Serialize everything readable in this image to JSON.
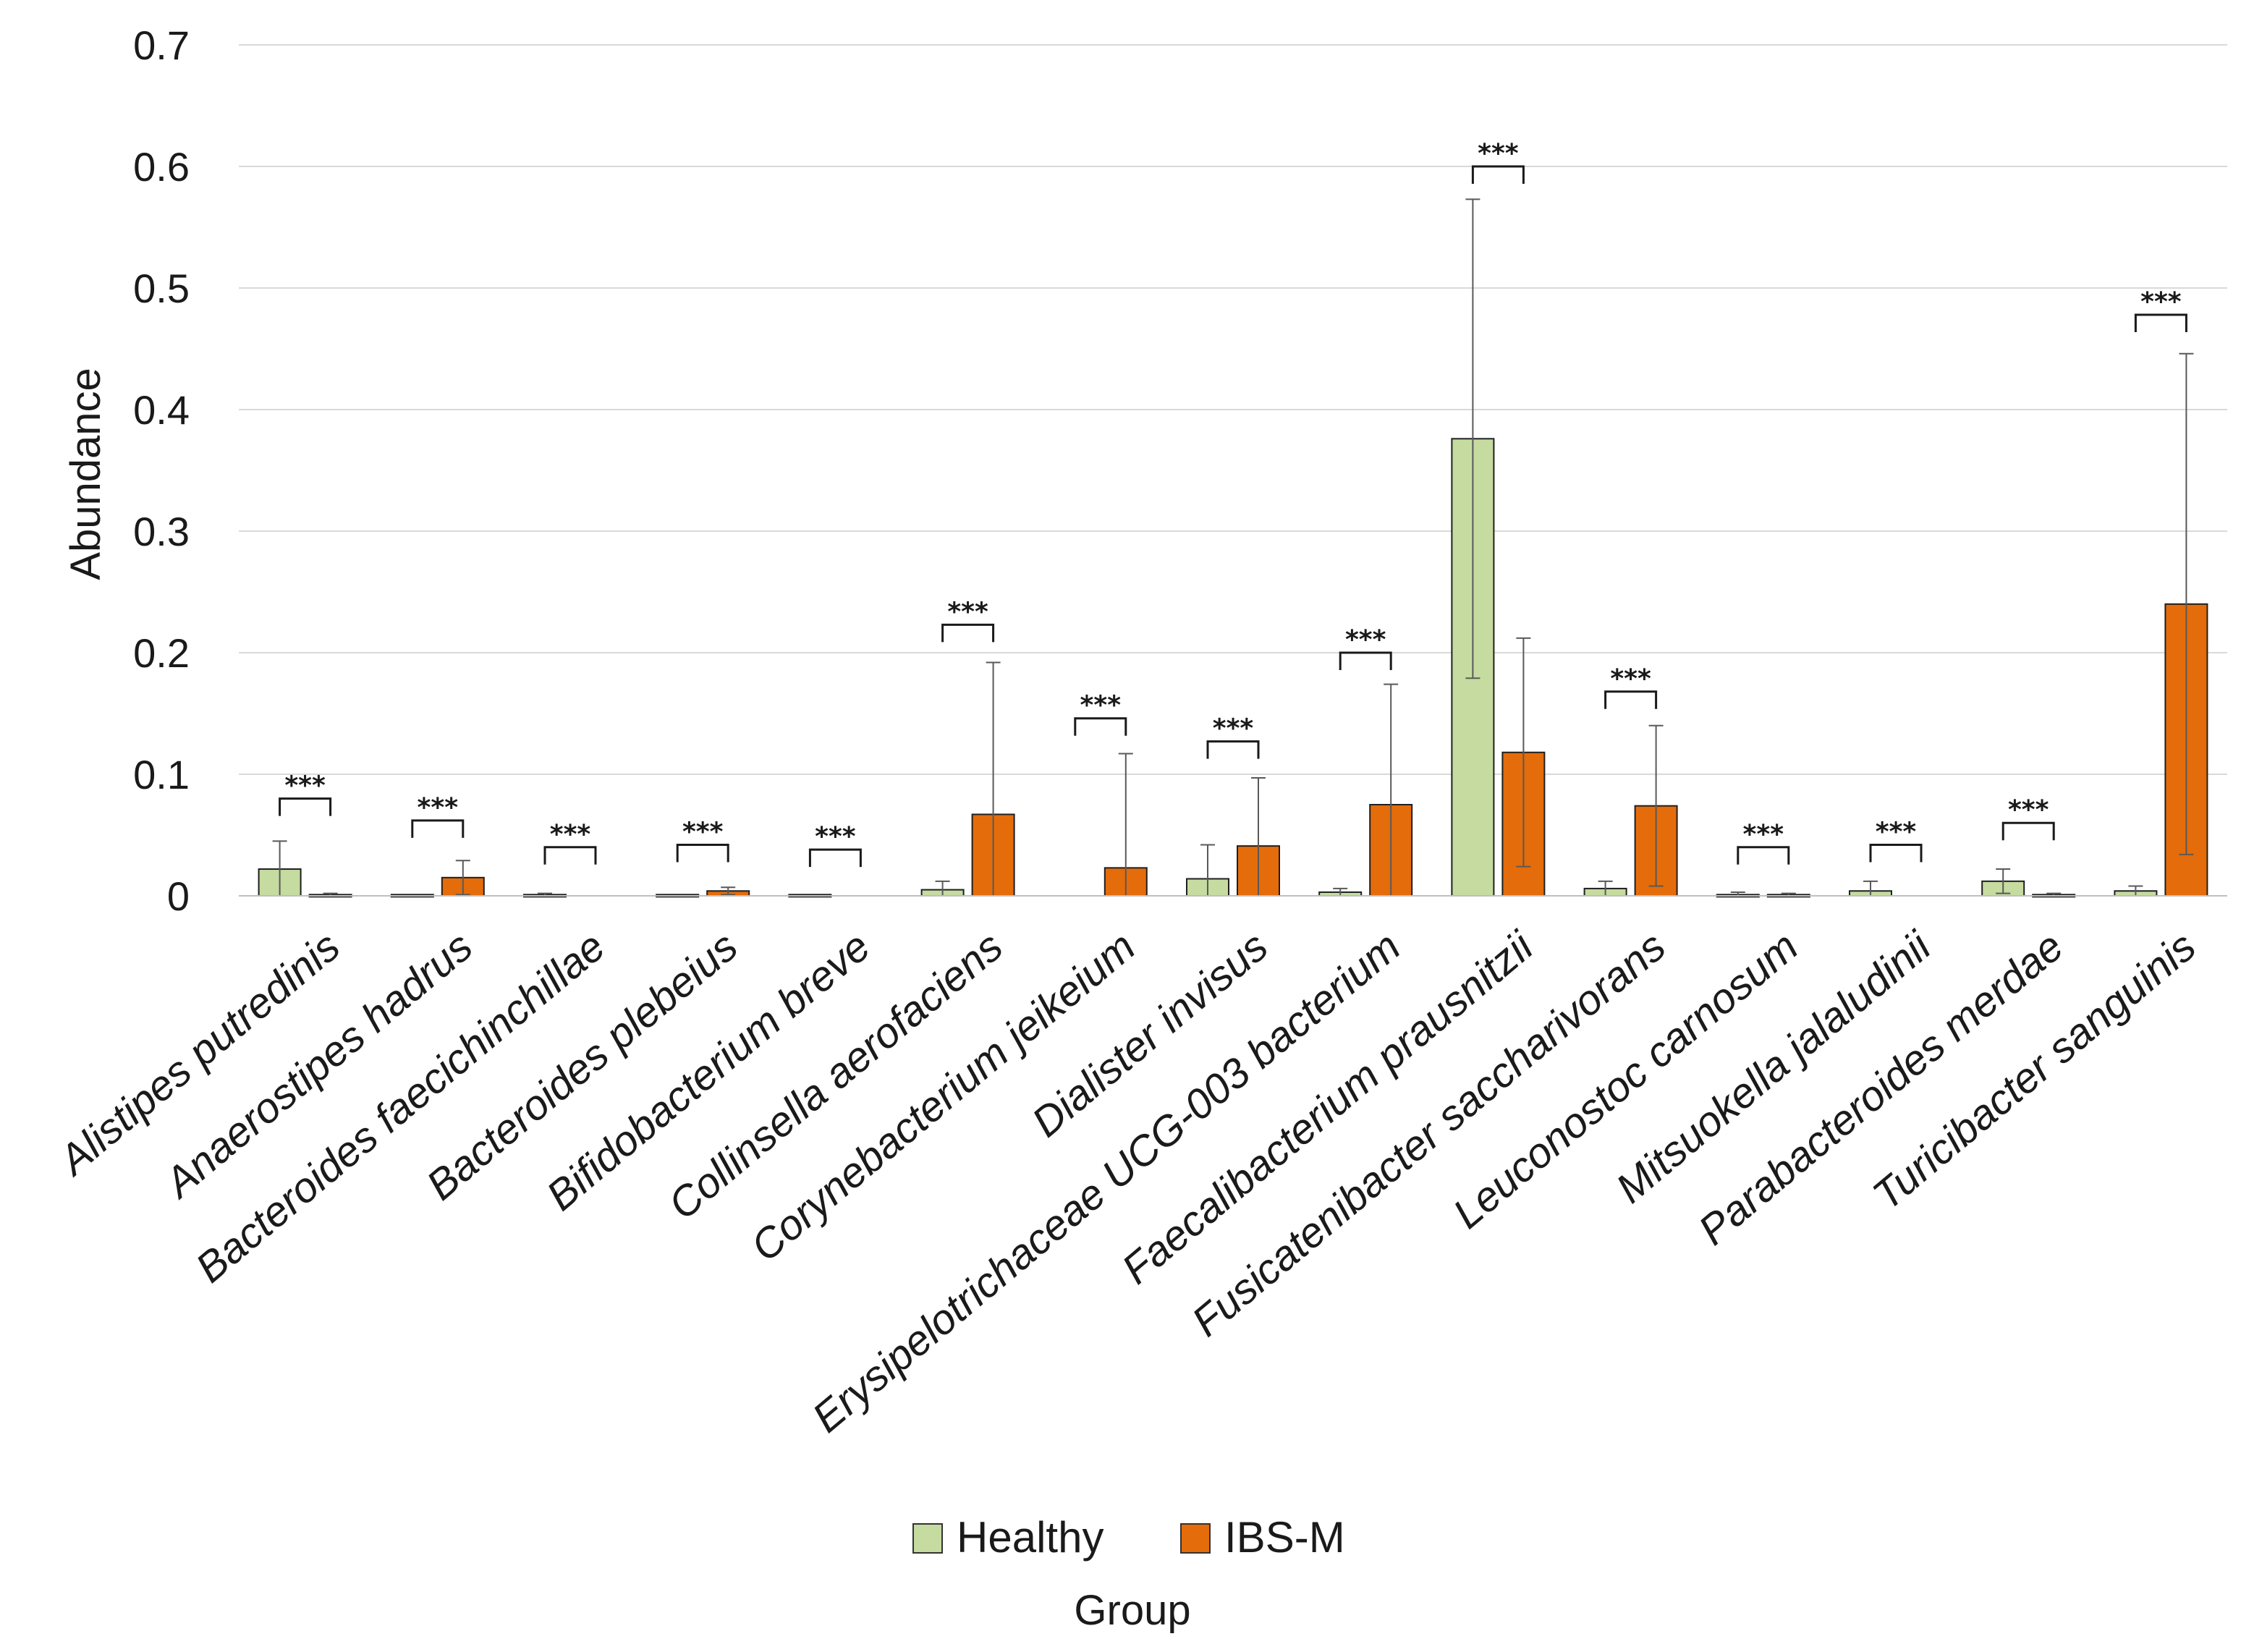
{
  "chart_data": {
    "type": "bar",
    "title": "",
    "xlabel": "Group",
    "ylabel": "Abundance",
    "ylim": [
      0,
      0.7
    ],
    "yticks": [
      "0",
      "0.1",
      "0.2",
      "0.3",
      "0.4",
      "0.5",
      "0.6",
      "0.7"
    ],
    "grid": true,
    "legend_position": "bottom",
    "categories": [
      "Alistipes putredinis",
      "Anaerostipes hadrus",
      "Bacteroides faecichinchillae",
      "Bacteroides plebeius",
      "Bifidobacterium breve",
      "Collinsella aerofaciens",
      "Corynebacterium jeikeium",
      "Dialister invisus",
      "Erysipelotrichaceae UCG-003 bacterium",
      "Faecalibacterium prausnitzii",
      "Fusicatenibacter saccharivorans",
      "Leuconostoc carnosum",
      "Mitsuokella jalaludinii",
      "Parabacteroides merdae",
      "Turicibacter sanguinis"
    ],
    "series": [
      {
        "name": "Healthy",
        "color": "#c5dba0",
        "values": [
          0.022,
          0.001,
          0.001,
          0.001,
          0.001,
          0.005,
          0.0,
          0.014,
          0.003,
          0.376,
          0.006,
          0.001,
          0.004,
          0.012,
          0.004
        ],
        "error_upper": [
          0.045,
          0.001,
          0.002,
          0.001,
          0.001,
          0.012,
          0.0,
          0.042,
          0.006,
          0.573,
          0.012,
          0.003,
          0.012,
          0.022,
          0.008
        ]
      },
      {
        "name": "IBS-M",
        "color": "#e46c0a",
        "values": [
          0.001,
          0.015,
          0.0,
          0.004,
          0.0,
          0.067,
          0.023,
          0.041,
          0.075,
          0.118,
          0.074,
          0.001,
          0.0,
          0.001,
          0.24
        ],
        "error_upper": [
          0.002,
          0.029,
          0.0,
          0.007,
          0.0,
          0.192,
          0.117,
          0.097,
          0.174,
          0.212,
          0.14,
          0.002,
          0.0,
          0.002,
          0.446
        ]
      }
    ],
    "significance": {
      "label": "***",
      "levels": [
        0.08,
        0.062,
        0.04,
        0.042,
        0.038,
        0.223,
        0.146,
        0.127,
        0.2,
        0.6,
        0.168,
        0.04,
        0.042,
        0.06,
        0.478
      ]
    }
  }
}
